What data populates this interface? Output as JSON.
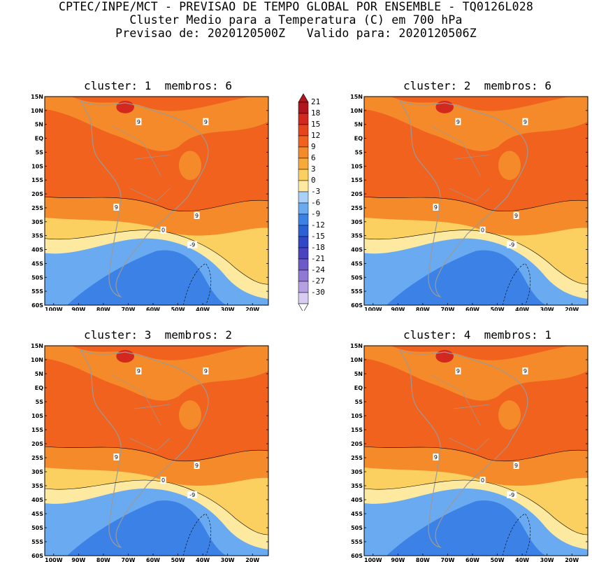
{
  "header": {
    "line1": "CPTEC/INPE/MCT - PREVISAO DE TEMPO GLOBAL POR ENSEMBLE - TQ0126L028",
    "line2": "Cluster Medio para a Temperatura (C) em 700 hPa",
    "line3": "Previsao de: 2020120500Z   Valido para: 2020120506Z"
  },
  "panels": [
    {
      "title": "cluster: 1  membros: 6"
    },
    {
      "title": "cluster: 2  membros: 6"
    },
    {
      "title": "cluster: 3  membros: 2"
    },
    {
      "title": "cluster: 4  membros: 1"
    }
  ],
  "axes": {
    "lat_labels": [
      "15N",
      "10N",
      "5N",
      "EQ",
      "5S",
      "10S",
      "15S",
      "20S",
      "25S",
      "30S",
      "35S",
      "40S",
      "45S",
      "50S",
      "55S",
      "60S"
    ],
    "lon_labels": [
      "100W",
      "90W",
      "80W",
      "70W",
      "60W",
      "50W",
      "40W",
      "30W",
      "20W"
    ]
  },
  "colorbar": {
    "labels": [
      "21",
      "18",
      "15",
      "12",
      "9",
      "6",
      "3",
      "0",
      "-3",
      "-6",
      "-9",
      "-12",
      "-15",
      "-18",
      "-21",
      "-24",
      "-27",
      "-30"
    ],
    "colors": [
      "#b0141c",
      "#d2281e",
      "#e8441c",
      "#f0621e",
      "#f58a2a",
      "#f8aa38",
      "#fbd060",
      "#fdeaa0",
      "#a8d0f8",
      "#6aaaf0",
      "#3c82e6",
      "#2a62d6",
      "#3048c8",
      "#4a44c2",
      "#6c5ac8",
      "#9078d6",
      "#b4a0e2",
      "#d8ccf0"
    ]
  },
  "colors": {
    "warm_max": "#d2281e",
    "warm": "#f0621e",
    "mild": "#f58a2a",
    "cool": "#fbd060",
    "near_zero": "#fdeaa0",
    "cold": "#6aaaf0",
    "colder": "#3c82e6",
    "coast": "#9a9a9a"
  },
  "contour_labels": {
    "nine": "9",
    "zero": "0",
    "minus_nine": "-9"
  }
}
